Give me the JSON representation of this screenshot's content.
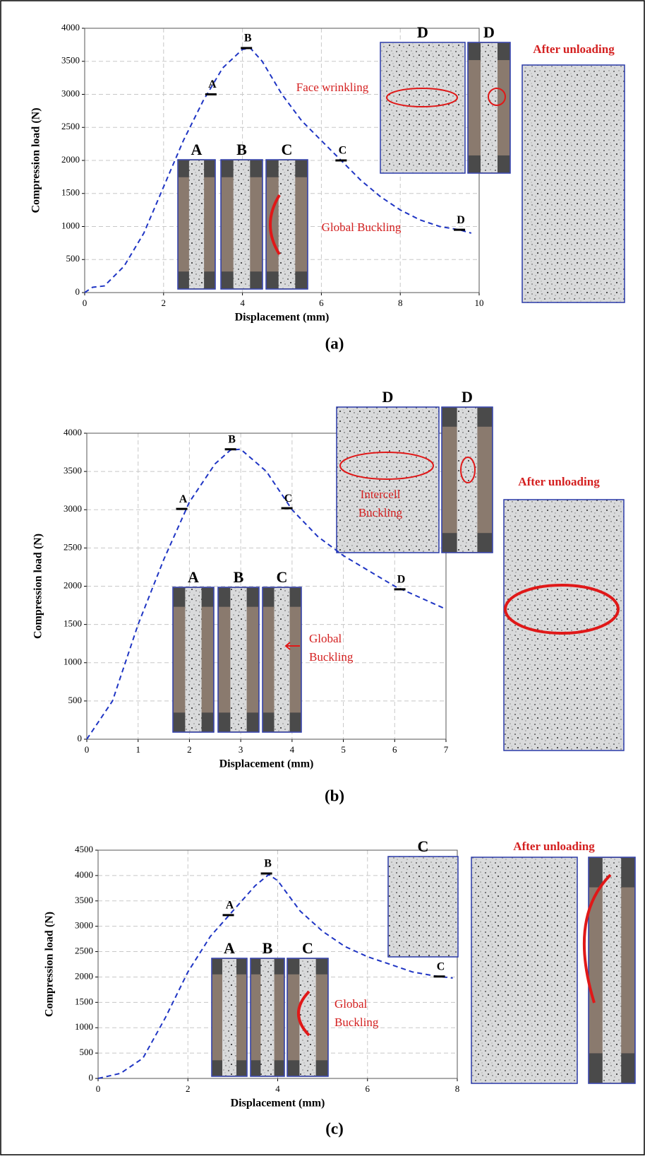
{
  "chart_data": [
    {
      "type": "line",
      "panel_label": "(a)",
      "x_label": "Displacement (mm)",
      "y_label": "Compression load (N)",
      "xlim": [
        0,
        10
      ],
      "xticks": [
        0,
        2,
        4,
        6,
        8,
        10
      ],
      "ylim": [
        0,
        4000
      ],
      "yticks": [
        0,
        500,
        1000,
        1500,
        2000,
        2500,
        3000,
        3500,
        4000
      ],
      "grid": true,
      "series": [
        {
          "color": "#1f35c4",
          "x": [
            0,
            0.2,
            0.5,
            1,
            1.5,
            2,
            2.5,
            3,
            3.5,
            4,
            4.2,
            4.5,
            5,
            5.5,
            6,
            6.5,
            7,
            7.5,
            8,
            8.5,
            9,
            9.5,
            9.8
          ],
          "values": [
            0,
            80,
            100,
            400,
            900,
            1600,
            2300,
            2900,
            3400,
            3680,
            3700,
            3500,
            3000,
            2600,
            2300,
            2000,
            1700,
            1450,
            1250,
            1100,
            1000,
            950,
            900
          ]
        }
      ],
      "markers": {
        "labels": [
          "A",
          "B",
          "C",
          "D"
        ],
        "x": [
          3.2,
          4.1,
          6.5,
          9.5
        ],
        "values": [
          3000,
          3700,
          2000,
          950
        ]
      },
      "insets": [
        "A",
        "B",
        "C",
        "D",
        "D"
      ],
      "notes": [
        [
          "Face wrinkling"
        ],
        [
          "Global Buckling"
        ]
      ],
      "after_unloading": "After unloading"
    },
    {
      "type": "line",
      "panel_label": "(b)",
      "x_label": "Displacement (mm)",
      "y_label": "Compression load (N)",
      "xlim": [
        0,
        7
      ],
      "xticks": [
        0,
        1,
        2,
        3,
        4,
        5,
        6,
        7
      ],
      "ylim": [
        0,
        4000
      ],
      "yticks": [
        0,
        500,
        1000,
        1500,
        2000,
        2500,
        3000,
        3500,
        4000
      ],
      "grid": true,
      "series": [
        {
          "color": "#1f35c4",
          "x": [
            0,
            0.5,
            1,
            1.5,
            2,
            2.5,
            2.8,
            3,
            3.5,
            4,
            4.5,
            5,
            5.5,
            6,
            6.5,
            7
          ],
          "values": [
            0,
            500,
            1500,
            2350,
            3100,
            3600,
            3780,
            3790,
            3500,
            3000,
            2650,
            2400,
            2200,
            2000,
            1850,
            1700
          ]
        }
      ],
      "markers": {
        "labels": [
          "A",
          "B",
          "C",
          "D"
        ],
        "x": [
          1.85,
          2.8,
          3.9,
          6.1
        ],
        "values": [
          3010,
          3790,
          3020,
          1960
        ]
      },
      "insets": [
        "A",
        "B",
        "C",
        "D",
        "D"
      ],
      "notes": [
        [
          "Intercell",
          "Buckling"
        ],
        [
          "Global",
          "Buckling"
        ]
      ],
      "after_unloading": "After unloading"
    },
    {
      "type": "line",
      "panel_label": "(c)",
      "x_label": "Displacement (mm)",
      "y_label": "Compression load (N)",
      "xlim": [
        0,
        8
      ],
      "xticks": [
        0,
        2,
        4,
        6,
        8
      ],
      "ylim": [
        0,
        4500
      ],
      "yticks": [
        0,
        500,
        1000,
        1500,
        2000,
        2500,
        3000,
        3500,
        4000,
        4500
      ],
      "grid": true,
      "series": [
        {
          "color": "#1f35c4",
          "x": [
            0,
            0.5,
            1,
            1.5,
            2,
            2.5,
            3,
            3.5,
            3.8,
            4,
            4.5,
            5,
            5.5,
            6,
            6.5,
            7,
            7.5,
            7.9
          ],
          "values": [
            0,
            100,
            400,
            1200,
            2100,
            2800,
            3300,
            3800,
            4020,
            3900,
            3300,
            2900,
            2600,
            2400,
            2250,
            2100,
            2020,
            1980
          ]
        }
      ],
      "markers": {
        "labels": [
          "A",
          "B",
          "C"
        ],
        "x": [
          2.9,
          3.75,
          7.6
        ],
        "values": [
          3220,
          4040,
          2010
        ]
      },
      "insets": [
        "A",
        "B",
        "C",
        "C"
      ],
      "notes": [
        [
          "Global",
          "Buckling"
        ]
      ],
      "after_unloading": "After unloading"
    }
  ]
}
